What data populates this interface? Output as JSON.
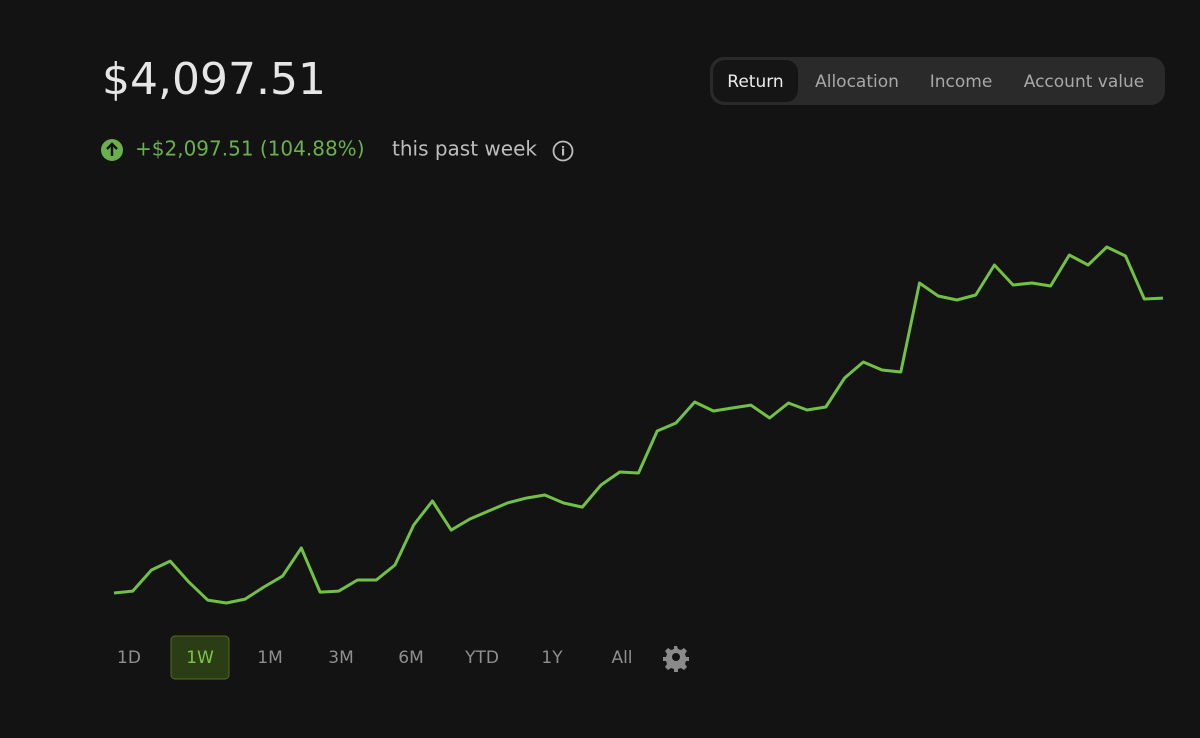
{
  "header": {
    "balance": "$4,097.51",
    "change": "+$2,097.51 (104.88%)",
    "period": "this past week"
  },
  "tabs": [
    "Return",
    "Allocation",
    "Income",
    "Account value"
  ],
  "selected_tab": 0,
  "ranges": [
    "1D",
    "1W",
    "1M",
    "3M",
    "6M",
    "YTD",
    "1Y",
    "All"
  ],
  "selected_range": 1,
  "chart_data": {
    "type": "line",
    "color": "#72c044",
    "values": [
      2000,
      2014,
      2164,
      2228,
      2078,
      1950,
      1929,
      1957,
      2043,
      2121,
      2321,
      2007,
      2014,
      2093,
      2093,
      2200,
      2485,
      2656,
      2449,
      2528,
      2585,
      2642,
      2677,
      2699,
      2642,
      2613,
      2770,
      2863,
      2856,
      3155,
      3212,
      3362,
      3298,
      3319,
      3340,
      3248,
      3355,
      3305,
      3326,
      3533,
      3647,
      3590,
      3576,
      4210,
      4118,
      4089,
      4125,
      4339,
      4196,
      4210,
      4189,
      4410,
      4339,
      4467,
      4403,
      4096,
      4103
    ]
  }
}
